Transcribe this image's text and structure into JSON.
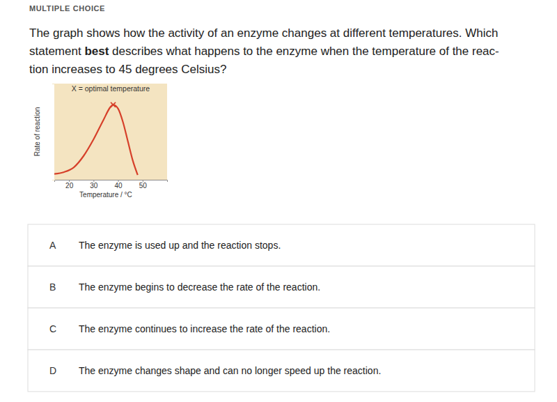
{
  "header": {
    "label": "MULTIPLE CHOICE"
  },
  "question": {
    "lines": [
      [
        {
          "text": "The graph shows how the activity of an enzyme changes at different temperatures. Which",
          "bold": false
        }
      ],
      [
        {
          "text": "statement ",
          "bold": false
        },
        {
          "text": "best",
          "bold": true
        },
        {
          "text": " describes what happens to the enzyme when the temperature of the reac-",
          "bold": false
        }
      ],
      [
        {
          "text": "tion increases to 45 degrees Celsius?",
          "bold": false
        }
      ]
    ]
  },
  "chart_data": {
    "type": "line",
    "title": "X = optimal temperature",
    "x_label": "Temperature / °C",
    "y_label": "Rate of reaction",
    "x": [
      14,
      18,
      22,
      26,
      30,
      34,
      37,
      38,
      40,
      42,
      44,
      46,
      48
    ],
    "values": [
      6,
      8,
      13,
      25,
      42,
      62,
      76,
      78,
      74,
      60,
      40,
      20,
      5
    ],
    "color": "#d6402a",
    "xlim": [
      14,
      60
    ],
    "xticks": [
      20,
      30,
      40,
      50
    ],
    "ylim": [
      0,
      100
    ],
    "tick_labels": "x",
    "annotations": [
      {
        "x": 38,
        "y": 78,
        "marker": "x"
      }
    ]
  },
  "options": [
    {
      "letter": "A",
      "text": "The enzyme is used up and the reaction stops."
    },
    {
      "letter": "B",
      "text": "The enzyme begins to decrease the rate of the reaction."
    },
    {
      "letter": "C",
      "text": "The enzyme continues to increase the rate of the reaction."
    },
    {
      "letter": "D",
      "text": "The enzyme changes shape and can no longer speed up the reaction."
    }
  ]
}
